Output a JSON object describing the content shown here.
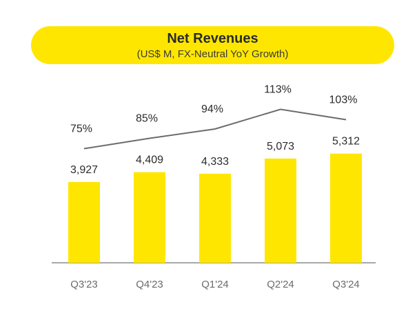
{
  "chart_data": {
    "type": "bar",
    "title": "Net Revenues",
    "subtitle": "(US$ M, FX-Neutral YoY Growth)",
    "categories": [
      "Q3'23",
      "Q4'23",
      "Q1'24",
      "Q2'24",
      "Q3'24"
    ],
    "series": [
      {
        "type": "bar",
        "values": [
          3927,
          4409,
          4333,
          5073,
          5312
        ]
      },
      {
        "type": "line",
        "values": [
          75,
          85,
          94,
          113,
          103
        ],
        "unit": "%"
      }
    ],
    "value_labels": [
      "3,927",
      "4,409",
      "4,333",
      "5,073",
      "5,312"
    ],
    "growth_labels": [
      "75%",
      "85%",
      "94%",
      "113%",
      "103%"
    ],
    "grid": false,
    "colors": {
      "bar": "#FFE600",
      "line": "#6b6b6b",
      "axis": "#8a8a8a",
      "text": "#2b2b2b",
      "tick": "#6b6b6b"
    }
  }
}
